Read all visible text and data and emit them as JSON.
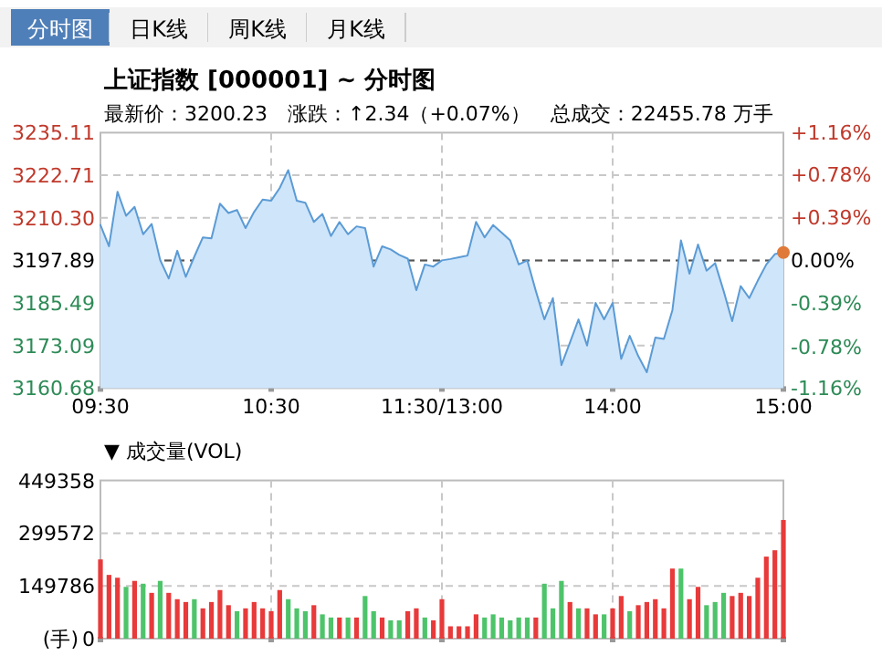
{
  "chart_data": [
    {
      "type": "area",
      "title": "上证指数 [000001] ~ 分时图",
      "subtitle": "最新价：3200.23　涨跌：↑2.34（+0.07%）　总成交：22455.78 万手",
      "annotations": [
        "分时图",
        "日K线",
        "周K线",
        "月K线"
      ],
      "categories": [
        "09:30",
        null,
        null,
        null,
        null,
        null,
        null,
        null,
        null,
        null,
        null,
        null,
        null,
        null,
        null,
        null,
        null,
        null,
        null,
        null,
        "10:30",
        null,
        null,
        null,
        null,
        null,
        null,
        null,
        null,
        null,
        null,
        null,
        null,
        null,
        null,
        null,
        null,
        null,
        null,
        null,
        "11:30/13:00",
        null,
        null,
        null,
        null,
        null,
        null,
        null,
        null,
        null,
        null,
        null,
        null,
        null,
        null,
        null,
        null,
        null,
        null,
        null,
        "14:00",
        null,
        null,
        null,
        null,
        null,
        null,
        null,
        null,
        null,
        null,
        null,
        null,
        null,
        null,
        null,
        null,
        null,
        null,
        null,
        "15:00"
      ],
      "ylim": [
        3160.68,
        3235.11
      ],
      "yticks": [
        3160.68,
        3173.09,
        3185.49,
        3197.89,
        {
          "value": 3210.3,
          "label": "3210.30"
        },
        3222.71,
        3235.11
      ],
      "y2lim": [
        -1.16,
        1.16
      ],
      "y2ticks": [
        {
          "value": -1.16,
          "label": "-1.16%"
        },
        {
          "value": -0.78,
          "label": "-0.78%"
        },
        {
          "value": -0.39,
          "label": "-0.39%"
        },
        {
          "value": 0,
          "label": "0.00%"
        },
        {
          "value": 0.39,
          "label": "+0.39%"
        },
        {
          "value": 0.78,
          "label": "+0.78%"
        },
        {
          "value": 1.16,
          "label": "+1.16%"
        }
      ],
      "grid": true,
      "ref_lines": [
        {
          "axis": "y",
          "value": 3197.89,
          "color": "#555555",
          "line_style": "dashed"
        }
      ],
      "series": [
        {
          "color": "#5b9bd5",
          "values": [
            3208.2,
            3202.0,
            3217.9,
            3210.9,
            3213.5,
            3205.5,
            3208.5,
            3198.0,
            3192.6,
            3200.7,
            3193.1,
            3199.0,
            3204.6,
            3204.3,
            3214.4,
            3211.7,
            3212.6,
            3207.3,
            3212.0,
            3215.6,
            3215.3,
            3219.0,
            3224.2,
            3215.3,
            3214.7,
            3209.1,
            3211.4,
            3205.0,
            3209.1,
            3205.5,
            3207.8,
            3207.3,
            3196.1,
            3202.0,
            3201.1,
            3199.5,
            3198.4,
            3189.2,
            3196.7,
            3196.1,
            3197.9,
            3198.3,
            3198.8,
            3199.3,
            3209.1,
            3204.6,
            3208.2,
            3206.0,
            3203.7,
            3196.7,
            3197.9,
            3189.0,
            3180.7,
            3186.9,
            3167.4,
            3174.0,
            3180.7,
            3173.1,
            3185.5,
            3180.7,
            3185.5,
            3169.2,
            3175.9,
            3170.0,
            3165.3,
            3175.4,
            3175.0,
            3183.4,
            3203.7,
            3194.0,
            3202.5,
            3194.9,
            3197.1,
            3189.0,
            3180.2,
            3190.4,
            3186.9,
            3192.0,
            3196.7,
            3199.7,
            3200.2
          ]
        },
        {
          "type": "scatter",
          "color": "#e07a3a",
          "x": [
            "15:00"
          ],
          "values": [
            3200.2
          ]
        }
      ]
    },
    {
      "type": "bar",
      "title": "▼ 成交量(VOL)",
      "ylabel": "(手)",
      "grid": true,
      "categories": [
        null,
        null,
        null,
        null,
        null,
        null,
        null,
        null,
        null,
        null,
        null,
        null,
        null,
        null,
        null,
        null,
        null,
        null,
        null,
        null,
        null,
        null,
        null,
        null,
        null,
        null,
        null,
        null,
        null,
        null,
        null,
        null,
        null,
        null,
        null,
        null,
        null,
        null,
        null,
        null,
        null,
        null,
        null,
        null,
        null,
        null,
        null,
        null,
        null,
        null,
        null,
        null,
        null,
        null,
        null,
        null,
        null,
        null,
        null,
        null,
        null,
        null,
        null,
        null,
        null,
        null,
        null,
        null,
        null,
        null,
        null,
        null,
        null,
        null,
        null,
        null,
        null,
        null,
        null,
        null,
        null
      ],
      "ylim": [
        0,
        449358
      ],
      "yticks": [
        0,
        149786,
        299572,
        449358
      ],
      "values": [
        225000,
        181000,
        173000,
        147000,
        164000,
        156000,
        130000,
        164000,
        130000,
        112000,
        104000,
        112000,
        86000,
        104000,
        138000,
        95000,
        78000,
        86000,
        104000,
        86000,
        78000,
        138000,
        112000,
        86000,
        78000,
        95000,
        69000,
        60000,
        60000,
        60000,
        60000,
        121000,
        78000,
        60000,
        52000,
        52000,
        78000,
        86000,
        60000,
        52000,
        112000,
        35000,
        35000,
        35000,
        69000,
        60000,
        69000,
        60000,
        52000,
        60000,
        60000,
        60000,
        156000,
        86000,
        164000,
        104000,
        86000,
        86000,
        69000,
        69000,
        86000,
        121000,
        78000,
        95000,
        104000,
        112000,
        86000,
        199000,
        199000,
        112000,
        147000,
        95000,
        104000,
        130000,
        121000,
        130000,
        121000,
        173000,
        233000,
        251000,
        337000
      ],
      "colors": [
        "#e83a3a",
        "#e83a3a",
        "#e83a3a",
        "#4ec46a",
        "#e83a3a",
        "#4ec46a",
        "#e83a3a",
        "#4ec46a",
        "#e83a3a",
        "#e83a3a",
        "#e83a3a",
        "#4ec46a",
        "#e83a3a",
        "#e83a3a",
        "#e83a3a",
        "#e83a3a",
        "#4ec46a",
        "#e83a3a",
        "#e83a3a",
        "#e83a3a",
        "#e83a3a",
        "#e83a3a",
        "#4ec46a",
        "#4ec46a",
        "#4ec46a",
        "#e83a3a",
        "#4ec46a",
        "#4ec46a",
        "#e83a3a",
        "#4ec46a",
        "#e83a3a",
        "#4ec46a",
        "#4ec46a",
        "#e83a3a",
        "#4ec46a",
        "#4ec46a",
        "#e83a3a",
        "#e83a3a",
        "#4ec46a",
        "#e83a3a",
        "#e83a3a",
        "#e83a3a",
        "#e83a3a",
        "#e83a3a",
        "#e83a3a",
        "#4ec46a",
        "#4ec46a",
        "#4ec46a",
        "#4ec46a",
        "#4ec46a",
        "#4ec46a",
        "#e83a3a",
        "#4ec46a",
        "#4ec46a",
        "#4ec46a",
        "#e83a3a",
        "#4ec46a",
        "#e83a3a",
        "#e83a3a",
        "#4ec46a",
        "#e83a3a",
        "#e83a3a",
        "#4ec46a",
        "#e83a3a",
        "#e83a3a",
        "#e83a3a",
        "#e83a3a",
        "#e83a3a",
        "#4ec46a",
        "#e83a3a",
        "#e83a3a",
        "#4ec46a",
        "#4ec46a",
        "#4ec46a",
        "#e83a3a",
        "#e83a3a",
        "#e83a3a",
        "#e83a3a",
        "#e83a3a",
        "#e83a3a",
        "#e83a3a"
      ]
    }
  ]
}
